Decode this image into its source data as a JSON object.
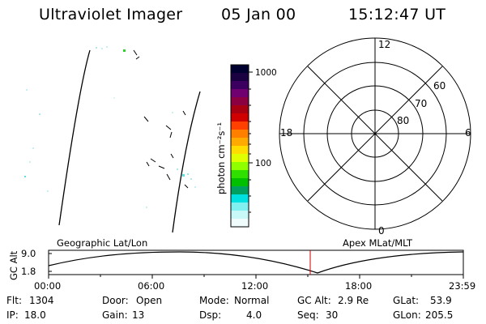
{
  "header": {
    "title": "Ultraviolet Imager",
    "date": "05 Jan 00",
    "time": "15:12:47 UT"
  },
  "colorbar": {
    "unit_label": "photon cm⁻²s⁻¹",
    "tick_labels": [
      "1000",
      "100"
    ],
    "colors": [
      "#000030",
      "#1a0040",
      "#3c0060",
      "#700070",
      "#8a0040",
      "#a80010",
      "#d00000",
      "#ff4000",
      "#ff8000",
      "#ffaa00",
      "#ffdd00",
      "#e0ff00",
      "#90ff00",
      "#30e000",
      "#00c000",
      "#00a060",
      "#00e0e0",
      "#80f0f0",
      "#c8f8f8",
      "#f0fcfc"
    ]
  },
  "polar_plot": {
    "hour_labels": {
      "top": "12",
      "left": "18",
      "right": "6",
      "bottom": "0"
    },
    "lat_labels": [
      "60",
      "70",
      "80"
    ]
  },
  "orbit_plot": {
    "left_title": "Geographic Lat/Lon",
    "right_title": "Apex MLat/MLT",
    "y_axis_label": "GC Alt",
    "y_ticks": [
      "9.0",
      "1.8"
    ],
    "x_ticks": [
      "00:00",
      "06:00",
      "12:00",
      "18:00",
      "23:59"
    ],
    "current_time_marker_color": "#cc0000"
  },
  "footer": {
    "row1": [
      {
        "label": "Flt:",
        "value": "1304"
      },
      {
        "label": "Door:",
        "value": "Open"
      },
      {
        "label": "Mode:",
        "value": "Normal"
      },
      {
        "label": "GC Alt:",
        "value": "2.9 Re"
      },
      {
        "label": "GLat:",
        "value": "53.9"
      }
    ],
    "row2": [
      {
        "label": "IP:",
        "value": "18.0"
      },
      {
        "label": "Gain:",
        "value": "13"
      },
      {
        "label": "Dsp:",
        "value": "4.0"
      },
      {
        "label": "Seq:",
        "value": "30"
      },
      {
        "label": "GLon:",
        "value": "205.5"
      }
    ]
  }
}
